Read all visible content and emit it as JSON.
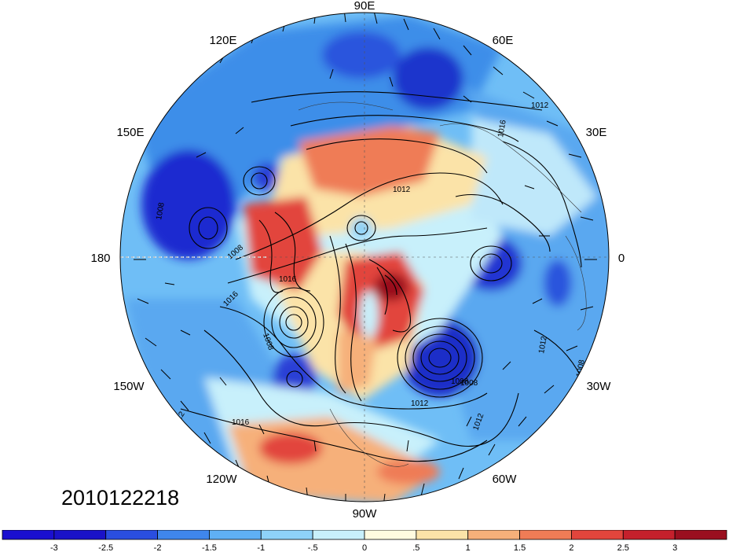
{
  "map": {
    "projection": "north-polar-stereographic",
    "longitude_labels": {
      "top": "90E",
      "upper_left": "120E",
      "upper_right": "60E",
      "mid_left_upper": "150E",
      "mid_right_upper": "30E",
      "left": "180",
      "right": "0",
      "mid_left_lower": "150W",
      "mid_right_lower": "30W",
      "lower_left": "120W",
      "lower_right": "60W",
      "bottom": "90W"
    },
    "contour_labels": [
      "1012",
      "1016",
      "1012",
      "1008",
      "1016",
      "1008",
      "1016",
      "1012",
      "1008",
      "1012",
      "1016",
      "1008",
      "1012",
      "1012",
      "1008",
      "1008"
    ],
    "timestamp": "2010122218"
  },
  "colorbar": {
    "tick_labels": [
      "-3",
      "-2.5",
      "-2",
      "-1.5",
      "-1",
      "-.5",
      "0",
      ".5",
      "1",
      "1.5",
      "2",
      "2.5",
      "3"
    ],
    "colors": [
      "#1a12c8",
      "#2a4ee0",
      "#3f86ec",
      "#5fb0f4",
      "#8ed2f8",
      "#c8f0fb",
      "#fffbe0",
      "#fbe3a8",
      "#f6b07a",
      "#ef7c56",
      "#e2453c",
      "#c5202c",
      "#9a0f1f"
    ]
  }
}
